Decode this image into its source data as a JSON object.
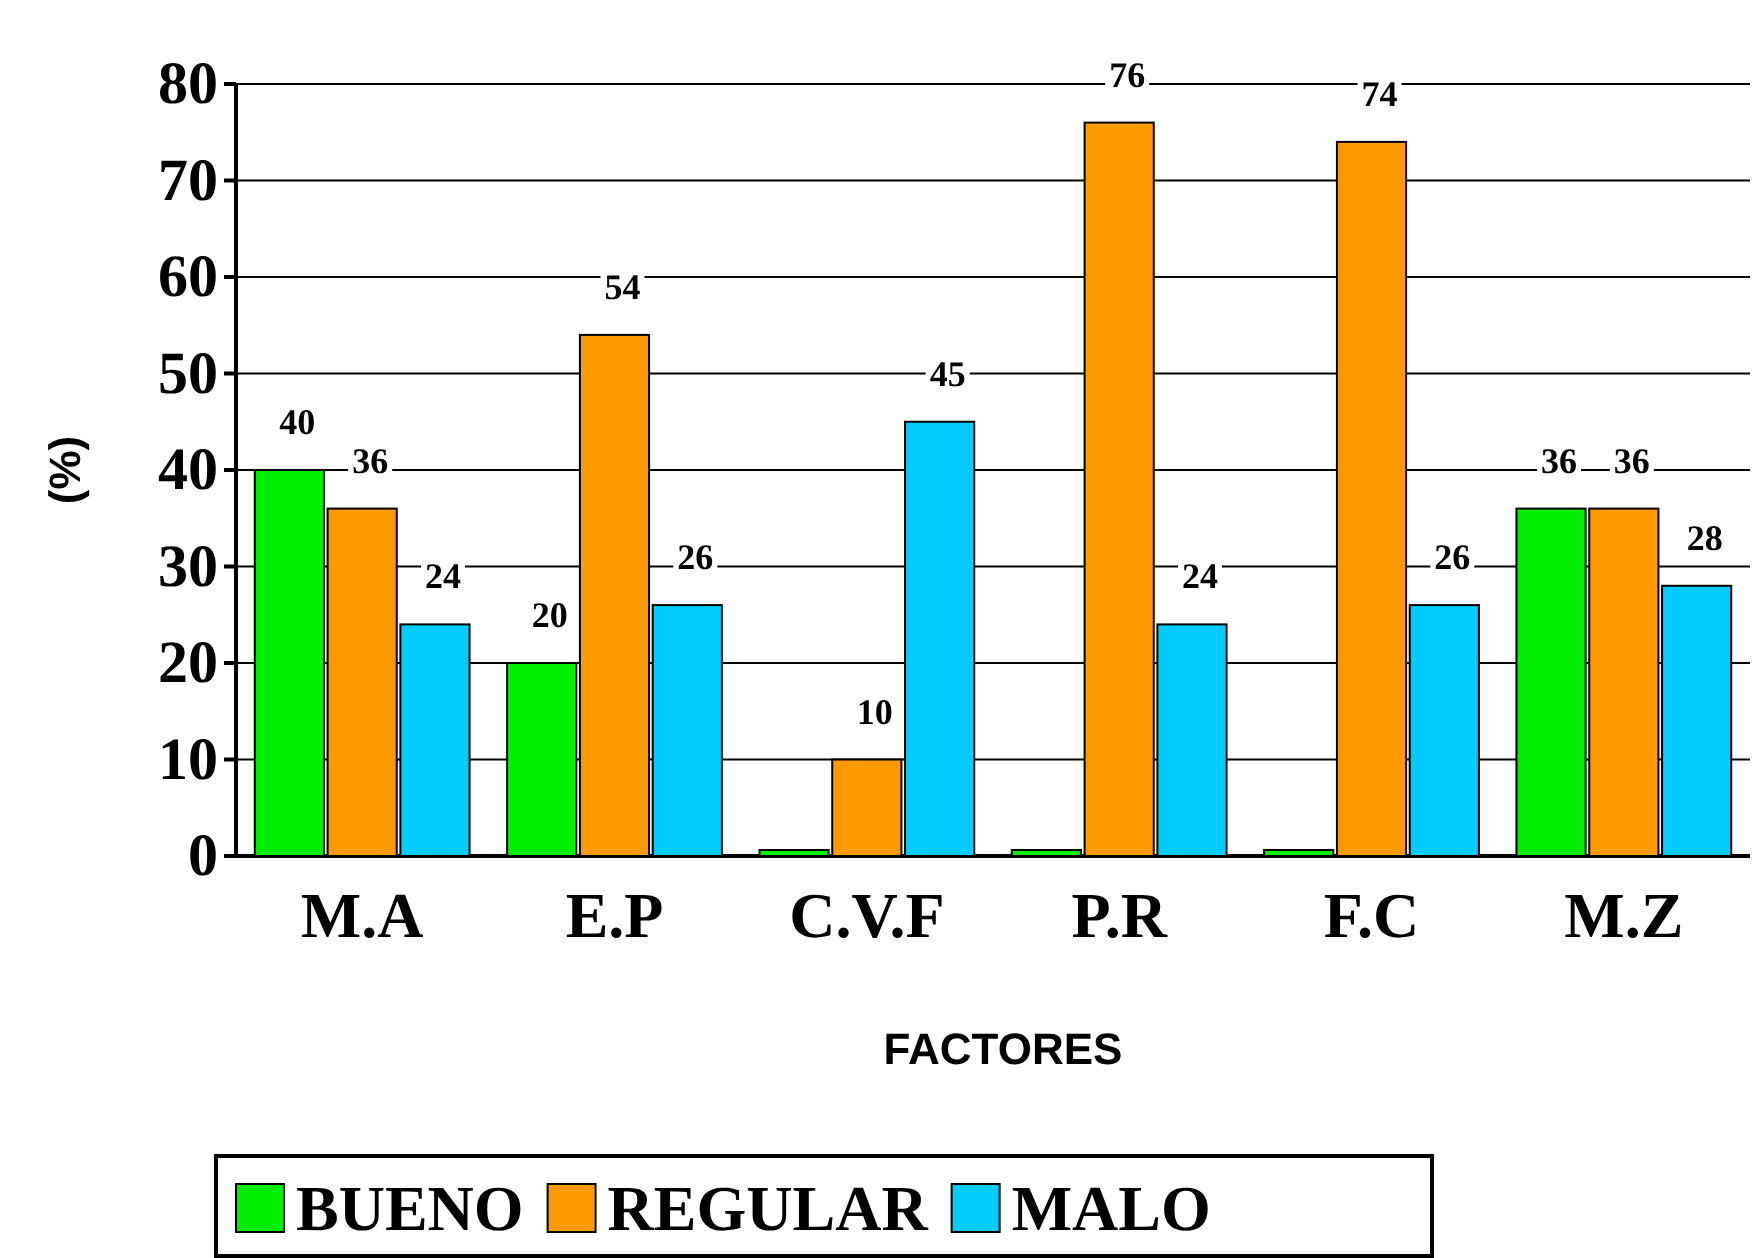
{
  "chart_data": {
    "type": "bar",
    "xlabel": "FACTORES",
    "ylabel": "(%)",
    "categories": [
      "M.A",
      "E.P",
      "C.V.F",
      "P.R",
      "F.C",
      "M.Z"
    ],
    "series": [
      {
        "name": "BUENO",
        "color": "#00ee00",
        "values": [
          40,
          20,
          0,
          0,
          0,
          36
        ],
        "value_labels": [
          "40",
          "20",
          null,
          null,
          null,
          "36"
        ]
      },
      {
        "name": "REGULAR",
        "color": "#ff9900",
        "values": [
          36,
          54,
          10,
          76,
          74,
          36
        ],
        "value_labels": [
          "36",
          "54",
          "10",
          "76",
          "74",
          "36"
        ]
      },
      {
        "name": "MALO",
        "color": "#00ccff",
        "values": [
          24,
          26,
          45,
          24,
          26,
          28
        ],
        "value_labels": [
          "24",
          "26",
          "45",
          "24",
          "26",
          "28"
        ]
      }
    ],
    "ylim": [
      0,
      80
    ],
    "yticks": [
      0,
      10,
      20,
      30,
      40,
      50,
      60,
      70,
      80
    ],
    "grid": "y",
    "legend": "bottom"
  }
}
